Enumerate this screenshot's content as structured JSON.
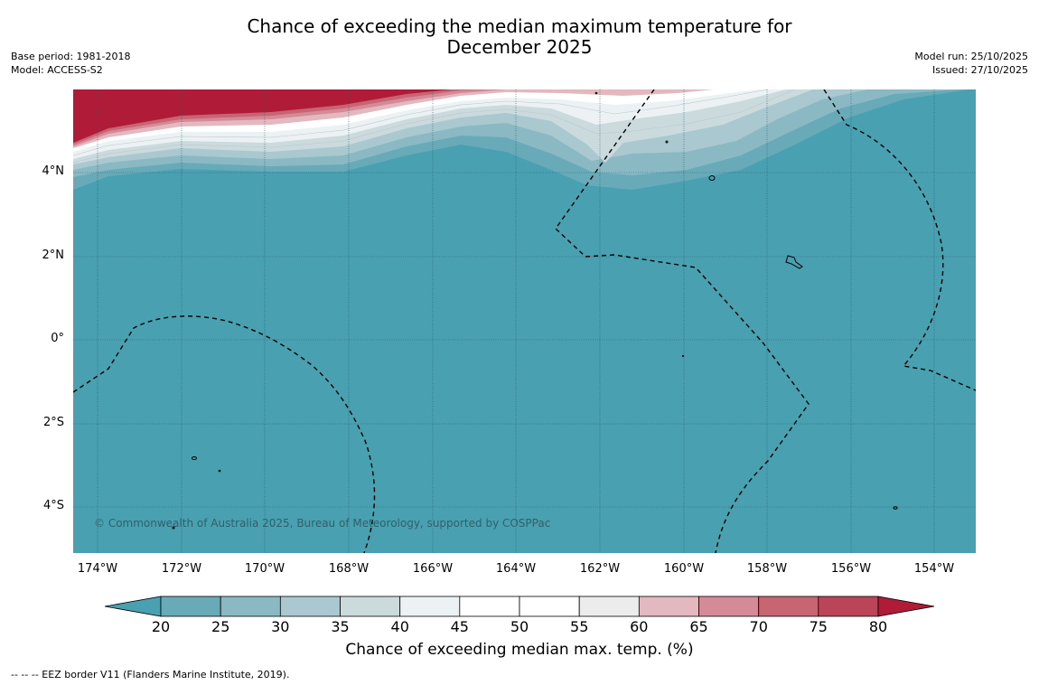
{
  "header": {
    "title_line1": "Chance of exceeding the median maximum temperature for",
    "title_line2": "December 2025",
    "base_period": "Base period: 1981-2018",
    "model": "Model: ACCESS-S2",
    "model_run": "Model run: 25/10/2025",
    "issued": "Issued: 27/10/2025"
  },
  "map": {
    "lat_labels": [
      "4°N",
      "2°N",
      "0°",
      "2°S",
      "4°S"
    ],
    "lon_labels": [
      "174°W",
      "172°W",
      "170°W",
      "168°W",
      "166°W",
      "164°W",
      "162°W",
      "160°W",
      "158°W",
      "156°W",
      "154°W"
    ],
    "copyright": "© Commonwealth of Australia 2025, Bureau of Meteorology, supported by COSPPac",
    "colors": {
      "ocean_base": "#49a0b1",
      "warm_high": "#b01c38"
    }
  },
  "colorbar": {
    "ticks": [
      "20",
      "25",
      "30",
      "35",
      "40",
      "45",
      "50",
      "55",
      "60",
      "65",
      "70",
      "75",
      "80"
    ],
    "colors": [
      "#49a0b1",
      "#69aab9",
      "#8ab9c4",
      "#aac8cf",
      "#cbdadd",
      "#ecf2f3",
      "#ffffff",
      "#ffffff",
      "#ececec",
      "#e3b8be",
      "#d48a97",
      "#c76572",
      "#bb4558",
      "#b01c38"
    ],
    "label": "Chance of exceeding median max. temp. (%)"
  },
  "footer": {
    "text": "--  --  -- EEZ border V11 (Flanders Marine Institute, 2019)."
  }
}
